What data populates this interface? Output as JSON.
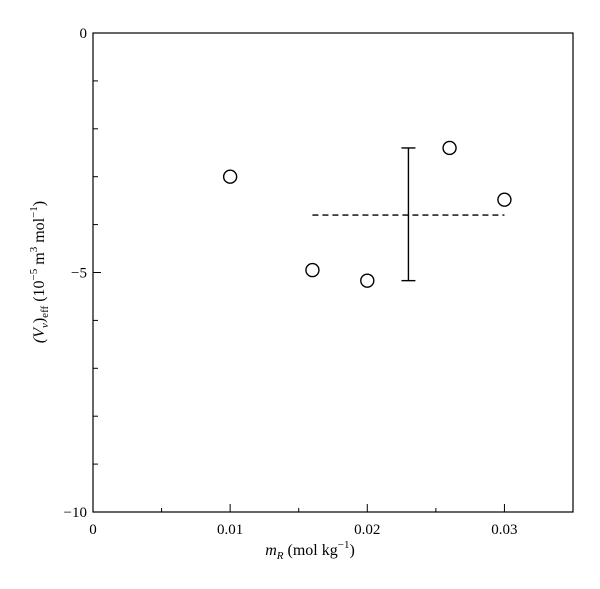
{
  "chart_data": {
    "type": "scatter",
    "title": "",
    "xlabel": {
      "base": "m",
      "sub": "R",
      "unit": "(mol kg",
      "sup": "−1",
      "close": ")"
    },
    "ylabel": {
      "base": "(V",
      "sub1": "v",
      "mid": ")",
      "sub2": "eff",
      "unit": " (10",
      "sup1": "−5",
      "unit2": " m",
      "sup2": "3",
      "unit3": " mol",
      "sup3": "−1",
      "close": ")"
    },
    "xlim": [
      0,
      0.035
    ],
    "ylim": [
      -10,
      0
    ],
    "x_ticks": [
      {
        "value": 0,
        "label": "0"
      },
      {
        "value": 0.01,
        "label": "0.01"
      },
      {
        "value": 0.02,
        "label": "0.02"
      },
      {
        "value": 0.03,
        "label": "0.03"
      }
    ],
    "x_minor_ticks": [
      0.005,
      0.015,
      0.025
    ],
    "y_ticks": [
      {
        "value": 0,
        "label": "0"
      },
      {
        "value": -5,
        "label": "−5"
      },
      {
        "value": -10,
        "label": "−10"
      }
    ],
    "y_minor_ticks": [
      -1,
      -2,
      -3,
      -4,
      -6,
      -7,
      -8,
      -9
    ],
    "points": [
      {
        "x": 0.01,
        "y": -3.0
      },
      {
        "x": 0.016,
        "y": -4.95
      },
      {
        "x": 0.02,
        "y": -5.17
      },
      {
        "x": 0.026,
        "y": -2.4
      },
      {
        "x": 0.03,
        "y": -3.48
      }
    ],
    "mean_line": {
      "x_start": 0.016,
      "x_end": 0.03,
      "y": -3.8
    },
    "error_bar": {
      "x": 0.023,
      "y_low": -5.17,
      "y_high": -2.4
    },
    "grid": false,
    "legend": "none",
    "colors": {
      "line": "#000000",
      "marker_fill": "#ffffff"
    }
  }
}
